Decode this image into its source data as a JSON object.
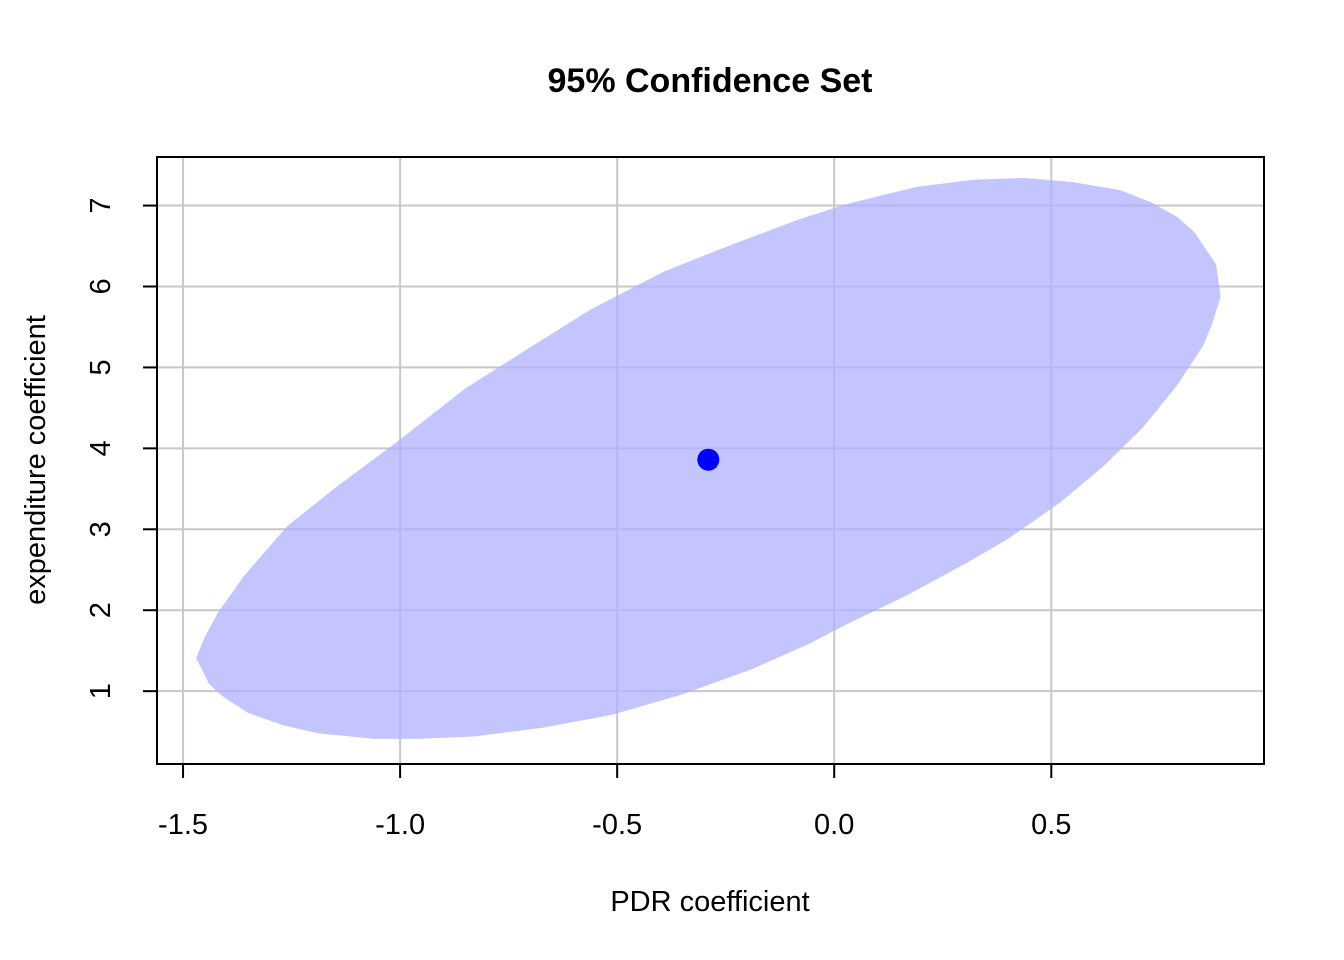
{
  "chart_data": {
    "type": "scatter",
    "title": "95% Confidence Set",
    "xlabel": "PDR coefficient",
    "ylabel": "expenditure coefficient",
    "xlim": [
      -1.56,
      0.99
    ],
    "ylim": [
      0.1,
      7.6
    ],
    "x_ticks": [
      -1.5,
      -1.0,
      -0.5,
      0.0,
      0.5
    ],
    "x_tick_labels": [
      "-1.5",
      "-1.0",
      "-0.5",
      "0.0",
      "0.5"
    ],
    "y_ticks": [
      1,
      2,
      3,
      4,
      5,
      6,
      7
    ],
    "y_tick_labels": [
      "1",
      "2",
      "3",
      "4",
      "5",
      "6",
      "7"
    ],
    "grid": true,
    "point_estimate": {
      "x": -0.29,
      "y": 3.86,
      "color": "#0000ff"
    },
    "confidence_region": {
      "fill": "#b0b0ff",
      "boundary": [
        [
          0.89,
          5.87
        ],
        [
          0.88,
          6.27
        ],
        [
          0.86,
          6.43
        ],
        [
          0.83,
          6.67
        ],
        [
          0.79,
          6.86
        ],
        [
          0.73,
          7.04
        ],
        [
          0.66,
          7.19
        ],
        [
          0.55,
          7.29
        ],
        [
          0.44,
          7.34
        ],
        [
          0.32,
          7.32
        ],
        [
          0.19,
          7.23
        ],
        [
          0.03,
          7.02
        ],
        [
          -0.08,
          6.83
        ],
        [
          -0.23,
          6.53
        ],
        [
          -0.39,
          6.19
        ],
        [
          -0.56,
          5.72
        ],
        [
          -0.7,
          5.25
        ],
        [
          -0.85,
          4.74
        ],
        [
          -1.0,
          4.11
        ],
        [
          -1.15,
          3.51
        ],
        [
          -1.26,
          3.04
        ],
        [
          -1.36,
          2.42
        ],
        [
          -1.42,
          1.97
        ],
        [
          -1.45,
          1.67
        ],
        [
          -1.47,
          1.41
        ],
        [
          -1.44,
          1.09
        ],
        [
          -1.41,
          0.94
        ],
        [
          -1.35,
          0.73
        ],
        [
          -1.27,
          0.58
        ],
        [
          -1.19,
          0.48
        ],
        [
          -1.06,
          0.41
        ],
        [
          -0.96,
          0.41
        ],
        [
          -0.83,
          0.44
        ],
        [
          -0.67,
          0.55
        ],
        [
          -0.51,
          0.71
        ],
        [
          -0.35,
          0.96
        ],
        [
          -0.19,
          1.27
        ],
        [
          -0.06,
          1.58
        ],
        [
          0.03,
          1.83
        ],
        [
          0.17,
          2.19
        ],
        [
          0.3,
          2.57
        ],
        [
          0.4,
          2.88
        ],
        [
          0.52,
          3.33
        ],
        [
          0.62,
          3.78
        ],
        [
          0.71,
          4.25
        ],
        [
          0.79,
          4.78
        ],
        [
          0.85,
          5.27
        ],
        [
          0.87,
          5.53
        ]
      ]
    }
  }
}
